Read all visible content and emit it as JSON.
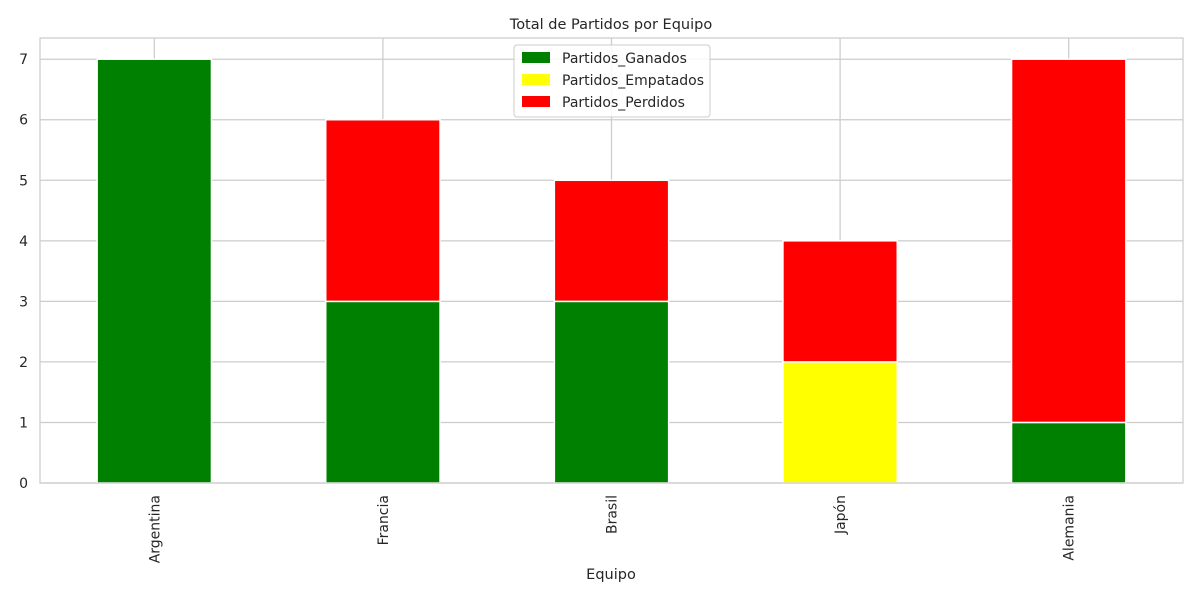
{
  "chart_data": {
    "type": "bar",
    "stacked": true,
    "title": "Total de Partidos por Equipo",
    "xlabel": "Equipo",
    "ylabel": "",
    "categories": [
      "Argentina",
      "Francia",
      "Brasil",
      "Japón",
      "Alemania"
    ],
    "series": [
      {
        "name": "Partidos_Ganados",
        "color": "#008000",
        "values": [
          7,
          3,
          3,
          0,
          1
        ]
      },
      {
        "name": "Partidos_Empatados",
        "color": "#ffff00",
        "values": [
          0,
          0,
          0,
          2,
          0
        ]
      },
      {
        "name": "Partidos_Perdidos",
        "color": "#ff0000",
        "values": [
          0,
          3,
          2,
          2,
          6
        ]
      }
    ],
    "ylim": [
      0,
      7.35
    ],
    "yticks": [
      0,
      1,
      2,
      3,
      4,
      5,
      6,
      7
    ],
    "grid": true,
    "legend_position": "top-center",
    "x_tick_rotation": "vertical"
  }
}
